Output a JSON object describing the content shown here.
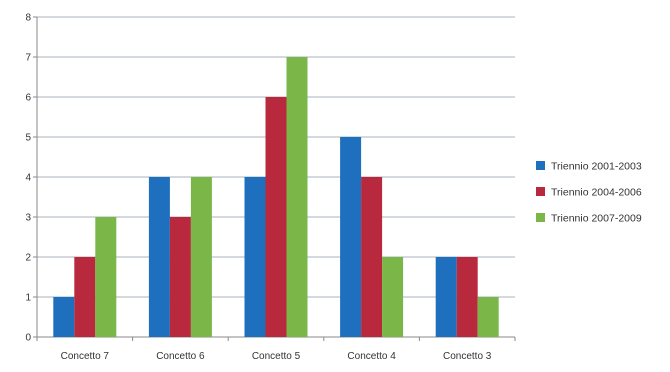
{
  "chart_data": {
    "type": "bar",
    "categories": [
      "Concetto 7",
      "Concetto 6",
      "Concetto 5",
      "Concetto 4",
      "Concetto 3"
    ],
    "series": [
      {
        "name": "Triennio 2001-2003",
        "color": "#1f6fbf",
        "values": [
          1,
          4,
          4,
          5,
          2
        ]
      },
      {
        "name": "Triennio 2004-2006",
        "color": "#b8293d",
        "values": [
          2,
          3,
          6,
          4,
          2
        ]
      },
      {
        "name": "Triennio 2007-2009",
        "color": "#7ab648",
        "values": [
          3,
          4,
          7,
          2,
          1
        ]
      }
    ],
    "ylim": [
      0,
      8
    ],
    "yticks": [
      0,
      1,
      2,
      3,
      4,
      5,
      6,
      7,
      8
    ],
    "grid": true,
    "legend": "right",
    "title": "",
    "xlabel": "",
    "ylabel": ""
  }
}
